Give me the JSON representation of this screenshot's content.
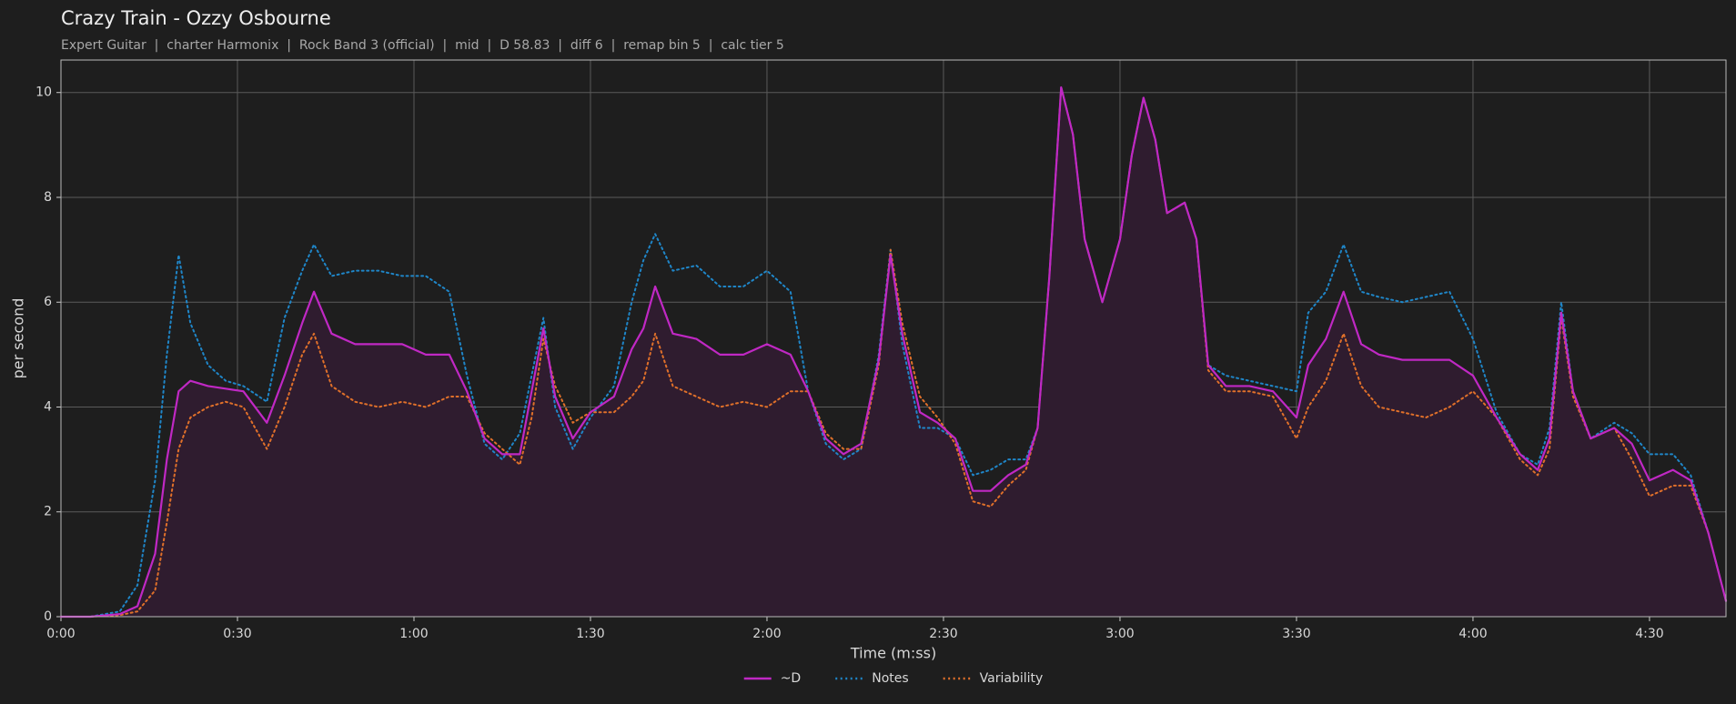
{
  "chart_data": {
    "type": "line",
    "title": "Crazy Train - Ozzy Osbourne",
    "subtitle": "Expert Guitar  |  charter Harmonix  |  Rock Band 3 (official)  |  mid  |  D 58.83  |  diff 6  |  remap bin 5  |  calc tier 5",
    "xlabel": "Time (m:ss)",
    "ylabel": "per second",
    "xlim": [
      0,
      283
    ],
    "ylim": [
      0,
      10.62
    ],
    "xticks": [
      {
        "value": 0,
        "label": "0:00"
      },
      {
        "value": 30,
        "label": "0:30"
      },
      {
        "value": 60,
        "label": "1:00"
      },
      {
        "value": 90,
        "label": "1:30"
      },
      {
        "value": 120,
        "label": "2:00"
      },
      {
        "value": 150,
        "label": "2:30"
      },
      {
        "value": 180,
        "label": "3:00"
      },
      {
        "value": 210,
        "label": "3:30"
      },
      {
        "value": 240,
        "label": "4:00"
      },
      {
        "value": 270,
        "label": "4:30"
      }
    ],
    "yticks": [
      0,
      2,
      4,
      6,
      8,
      10
    ],
    "grid": true,
    "legend": "lower center",
    "x": [
      0,
      5,
      10,
      13,
      16,
      18,
      20,
      22,
      25,
      28,
      31,
      35,
      38,
      41,
      43,
      46,
      50,
      54,
      58,
      62,
      66,
      69,
      72,
      75,
      78,
      80,
      82,
      84,
      87,
      90,
      94,
      97,
      99,
      101,
      104,
      108,
      112,
      116,
      120,
      124,
      127,
      130,
      133,
      136,
      139,
      141,
      143,
      146,
      149,
      152,
      155,
      158,
      161,
      164,
      166,
      168,
      170,
      172,
      174,
      177,
      180,
      182,
      184,
      186,
      188,
      191,
      193,
      195,
      198,
      202,
      206,
      210,
      212,
      215,
      218,
      221,
      224,
      228,
      232,
      236,
      240,
      244,
      248,
      251,
      253,
      255,
      257,
      260,
      264,
      267,
      270,
      274,
      277,
      280,
      283
    ],
    "series": [
      {
        "name": "~D",
        "color": "#c028c4",
        "style": "solid",
        "fill": "#2f1c2f",
        "values": [
          0,
          0,
          0.05,
          0.2,
          1.2,
          3.0,
          4.3,
          4.5,
          4.4,
          4.35,
          4.3,
          3.7,
          4.6,
          5.6,
          6.2,
          5.4,
          5.2,
          5.2,
          5.2,
          5.0,
          5.0,
          4.3,
          3.4,
          3.1,
          3.1,
          4.3,
          5.5,
          4.2,
          3.4,
          3.9,
          4.2,
          5.1,
          5.5,
          6.3,
          5.4,
          5.3,
          5.0,
          5.0,
          5.2,
          5.0,
          4.3,
          3.4,
          3.1,
          3.3,
          4.9,
          6.9,
          5.4,
          3.9,
          3.7,
          3.4,
          2.4,
          2.4,
          2.7,
          2.9,
          3.6,
          6.5,
          10.1,
          9.2,
          7.2,
          6.0,
          7.2,
          8.8,
          9.9,
          9.1,
          7.7,
          7.9,
          7.2,
          4.8,
          4.4,
          4.4,
          4.3,
          3.8,
          4.8,
          5.3,
          6.2,
          5.2,
          5.0,
          4.9,
          4.9,
          4.9,
          4.6,
          3.8,
          3.1,
          2.8,
          3.4,
          5.8,
          4.3,
          3.4,
          3.6,
          3.3,
          2.6,
          2.8,
          2.6,
          1.6,
          0.3
        ]
      },
      {
        "name": "Notes",
        "color": "#1f86c8",
        "style": "dotted",
        "values": [
          0,
          0,
          0.1,
          0.6,
          2.6,
          5.0,
          6.9,
          5.6,
          4.8,
          4.5,
          4.4,
          4.1,
          5.7,
          6.6,
          7.1,
          6.5,
          6.6,
          6.6,
          6.5,
          6.5,
          6.2,
          4.6,
          3.3,
          3.0,
          3.5,
          4.6,
          5.7,
          4.0,
          3.2,
          3.8,
          4.4,
          6.0,
          6.8,
          7.3,
          6.6,
          6.7,
          6.3,
          6.3,
          6.6,
          6.2,
          4.3,
          3.3,
          3.0,
          3.2,
          5.0,
          7.0,
          5.2,
          3.6,
          3.6,
          3.4,
          2.7,
          2.8,
          3.0,
          3.0,
          3.6,
          6.5,
          10.1,
          9.2,
          7.2,
          6.0,
          7.2,
          8.8,
          9.9,
          9.1,
          7.7,
          7.9,
          7.2,
          4.8,
          4.6,
          4.5,
          4.4,
          4.3,
          5.8,
          6.2,
          7.1,
          6.2,
          6.1,
          6.0,
          6.1,
          6.2,
          5.3,
          3.9,
          3.1,
          2.9,
          3.6,
          6.0,
          4.3,
          3.4,
          3.7,
          3.5,
          3.1,
          3.1,
          2.7,
          1.6,
          0.3
        ]
      },
      {
        "name": "Variability",
        "color": "#e0702a",
        "style": "dotted",
        "values": [
          0,
          0,
          0.03,
          0.1,
          0.5,
          1.8,
          3.2,
          3.8,
          4.0,
          4.1,
          4.0,
          3.2,
          4.0,
          5.0,
          5.4,
          4.4,
          4.1,
          4.0,
          4.1,
          4.0,
          4.2,
          4.2,
          3.5,
          3.2,
          2.9,
          3.8,
          5.3,
          4.4,
          3.7,
          3.9,
          3.9,
          4.2,
          4.5,
          5.4,
          4.4,
          4.2,
          4.0,
          4.1,
          4.0,
          4.3,
          4.3,
          3.5,
          3.2,
          3.2,
          4.8,
          7.0,
          5.6,
          4.2,
          3.8,
          3.3,
          2.2,
          2.1,
          2.5,
          2.8,
          3.6,
          6.5,
          10.1,
          9.2,
          7.2,
          6.0,
          7.2,
          8.8,
          9.9,
          9.1,
          7.7,
          7.9,
          7.2,
          4.7,
          4.3,
          4.3,
          4.2,
          3.4,
          4.0,
          4.5,
          5.4,
          4.4,
          4.0,
          3.9,
          3.8,
          4.0,
          4.3,
          3.8,
          3.0,
          2.7,
          3.2,
          5.7,
          4.2,
          3.4,
          3.6,
          3.0,
          2.3,
          2.5,
          2.5,
          1.6,
          0.3
        ]
      }
    ]
  }
}
